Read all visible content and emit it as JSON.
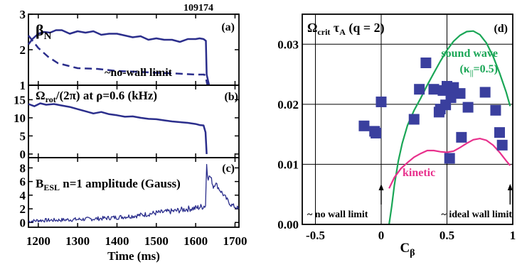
{
  "shot_number": "109174",
  "time_axis": {
    "xlim": [
      1175,
      1710
    ],
    "ticks": [
      1200,
      1300,
      1400,
      1500,
      1600,
      1700
    ],
    "tick_labels": [
      "1200",
      "1300",
      "1400",
      "1500",
      "1600",
      "1700"
    ],
    "xlabel": "Time (ms)"
  },
  "chart_data": [
    {
      "id": "a",
      "type": "line",
      "panel_label": "(a)",
      "title_main": "β",
      "title_sub": "N",
      "ylim": [
        1,
        3
      ],
      "y_ticks": [
        1,
        2,
        3
      ],
      "y_tick_labels": [
        "1",
        "2",
        "3"
      ],
      "series": [
        {
          "style": "solid",
          "x": [
            1175,
            1185,
            1200,
            1215,
            1230,
            1245,
            1260,
            1280,
            1300,
            1320,
            1340,
            1360,
            1380,
            1400,
            1420,
            1440,
            1460,
            1480,
            1500,
            1520,
            1540,
            1560,
            1580,
            1600,
            1610,
            1620,
            1626,
            1628,
            1634
          ],
          "y": [
            2.15,
            2.3,
            2.45,
            2.5,
            2.48,
            2.55,
            2.55,
            2.45,
            2.52,
            2.48,
            2.52,
            2.42,
            2.45,
            2.45,
            2.4,
            2.35,
            2.38,
            2.28,
            2.32,
            2.28,
            2.28,
            2.22,
            2.3,
            2.3,
            2.32,
            2.3,
            2.25,
            1.3,
            1.0
          ]
        },
        {
          "style": "dashed",
          "name": "~no-wall limit",
          "x": [
            1175,
            1200,
            1225,
            1250,
            1275,
            1300,
            1350,
            1400,
            1450,
            1500,
            1550,
            1600,
            1622,
            1626,
            1630
          ],
          "y": [
            2.4,
            2.05,
            1.8,
            1.62,
            1.55,
            1.48,
            1.46,
            1.4,
            1.38,
            1.35,
            1.33,
            1.3,
            1.3,
            1.2,
            1.0
          ]
        }
      ]
    },
    {
      "id": "b",
      "type": "line",
      "panel_label": "(b)",
      "title_main": "Ω",
      "title_sub": "rot",
      "title_rest": "/(2π) at ρ=0.6 (kHz)",
      "ylim": [
        -1,
        19
      ],
      "y_ticks": [
        0,
        5,
        10,
        15
      ],
      "y_tick_labels": [
        "0",
        "5",
        "10",
        "15"
      ],
      "series": [
        {
          "style": "solid",
          "x": [
            1175,
            1190,
            1205,
            1220,
            1240,
            1260,
            1280,
            1300,
            1320,
            1340,
            1360,
            1380,
            1400,
            1420,
            1440,
            1460,
            1480,
            1500,
            1520,
            1540,
            1560,
            1580,
            1600,
            1610,
            1620,
            1625,
            1628
          ],
          "y": [
            13.8,
            13.2,
            14.0,
            13.6,
            13.8,
            13.4,
            13.0,
            12.4,
            11.8,
            11.2,
            11.6,
            11.0,
            10.7,
            10.3,
            10.4,
            10.0,
            9.7,
            9.6,
            9.3,
            9.0,
            8.8,
            8.6,
            8.3,
            8.0,
            7.9,
            6.0,
            0.0
          ]
        }
      ]
    },
    {
      "id": "c",
      "type": "line",
      "panel_label": "(c)",
      "title_main": "B",
      "title_sub": "ESL",
      "title_rest": " n=1 amplitude (Gauss)",
      "ylim": [
        -0.7,
        9.5
      ],
      "y_ticks": [
        0,
        2,
        4,
        6,
        8
      ],
      "y_tick_labels": [
        "0",
        "2",
        "4",
        "6",
        "8"
      ],
      "series": [
        {
          "style": "noisy",
          "x": [
            1175,
            1200,
            1250,
            1300,
            1350,
            1400,
            1450,
            1500,
            1550,
            1580,
            1600,
            1615,
            1625,
            1628,
            1632,
            1636,
            1640,
            1645,
            1650,
            1660,
            1670,
            1680,
            1690,
            1700,
            1710
          ],
          "y": [
            0.15,
            0.3,
            0.35,
            0.45,
            0.55,
            0.75,
            1.0,
            1.4,
            1.7,
            2.0,
            2.1,
            2.3,
            2.5,
            8.9,
            6.5,
            6.8,
            6.3,
            5.2,
            5.8,
            4.9,
            4.1,
            3.3,
            2.6,
            2.3,
            2.0
          ]
        }
      ]
    },
    {
      "id": "d",
      "type": "scatter",
      "panel_label": "(d)",
      "title_main": "Ω",
      "title_sub": "crit",
      "title_main2": " τ",
      "title_sub2": "A",
      "title_rest": " (q = 2)",
      "xlabel_main": "C",
      "xlabel_sub": "β",
      "xlim": [
        -0.6,
        1.0
      ],
      "ylim": [
        0.0,
        0.035
      ],
      "x_ticks": [
        -0.5,
        0,
        0.5,
        1
      ],
      "x_tick_labels": [
        "-0.5",
        "0",
        "0.5",
        "1"
      ],
      "y_ticks": [
        0.0,
        0.01,
        0.02,
        0.03
      ],
      "y_tick_labels": [
        "0.00",
        "0.01",
        "0.02",
        "0.03"
      ],
      "grid": true,
      "points": {
        "x": [
          -0.13,
          -0.05,
          -0.04,
          0.0,
          0.25,
          0.29,
          0.34,
          0.4,
          0.44,
          0.45,
          0.47,
          0.49,
          0.5,
          0.52,
          0.53,
          0.55,
          0.6,
          0.61,
          0.66,
          0.79,
          0.87,
          0.9,
          0.92
        ],
        "y": [
          0.0164,
          0.0155,
          0.0152,
          0.0204,
          0.0175,
          0.0225,
          0.0269,
          0.0225,
          0.0187,
          0.0192,
          0.0223,
          0.0199,
          0.023,
          0.011,
          0.0211,
          0.0228,
          0.0218,
          0.0145,
          0.0195,
          0.022,
          0.019,
          0.0153,
          0.0132
        ]
      },
      "curves": [
        {
          "name": "sound wave",
          "label_line2_pre": "(κ",
          "label_line2_sub": "||",
          "label_line2_post": "=0.5)",
          "color": "#1aa656",
          "x": [
            0.06,
            0.08,
            0.1,
            0.13,
            0.16,
            0.2,
            0.25,
            0.3,
            0.35,
            0.4,
            0.45,
            0.5,
            0.55,
            0.6,
            0.65,
            0.7,
            0.75,
            0.8,
            0.85,
            0.9,
            0.95,
            0.98
          ],
          "y": [
            0.0,
            0.003,
            0.0065,
            0.0105,
            0.0135,
            0.0165,
            0.019,
            0.021,
            0.0232,
            0.0252,
            0.0272,
            0.029,
            0.0305,
            0.0315,
            0.0321,
            0.0322,
            0.0316,
            0.0302,
            0.028,
            0.0252,
            0.022,
            0.0197
          ]
        },
        {
          "name": "kinetic",
          "color": "#e8308c",
          "x": [
            0.06,
            0.1,
            0.15,
            0.2,
            0.25,
            0.3,
            0.35,
            0.4,
            0.45,
            0.5,
            0.55,
            0.6,
            0.65,
            0.7,
            0.75,
            0.8,
            0.85,
            0.9,
            0.95,
            0.98
          ],
          "y": [
            0.006,
            0.0078,
            0.0093,
            0.0103,
            0.0112,
            0.0118,
            0.0123,
            0.0123,
            0.0121,
            0.012,
            0.0122,
            0.0128,
            0.0135,
            0.0141,
            0.0143,
            0.014,
            0.0132,
            0.012,
            0.0106,
            0.0098
          ]
        }
      ],
      "annotations": [
        {
          "text": "~ no wall limit",
          "arrow_x": 0.0
        },
        {
          "text": "~ ideal wall limit",
          "arrow_x": 0.98
        }
      ]
    }
  ],
  "colors": {
    "data": "#2b2e8c",
    "points": "#3a3f9e",
    "sound_wave": "#1aa656",
    "kinetic": "#e8308c"
  }
}
